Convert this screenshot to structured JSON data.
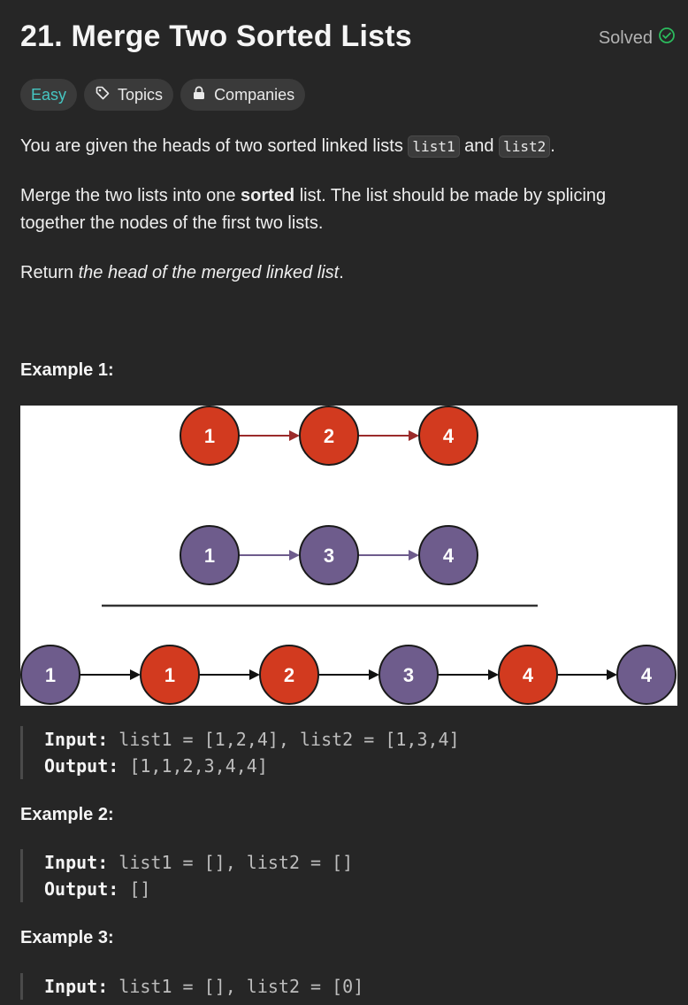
{
  "problem": {
    "title": "21. Merge Two Sorted Lists",
    "status": "Solved",
    "tags": {
      "difficulty": "Easy",
      "topics": "Topics",
      "companies": "Companies"
    }
  },
  "description": {
    "p1_pre": "You are given the heads of two sorted linked lists ",
    "p1_code1": "list1",
    "p1_mid": " and ",
    "p1_code2": "list2",
    "p1_end": ".",
    "p2_pre": "Merge the two lists into one ",
    "p2_bold": "sorted",
    "p2_post": " list. The list should be made by splicing together the nodes of the first two lists.",
    "p3_pre": "Return ",
    "p3_italic": "the head of the merged linked list",
    "p3_end": "."
  },
  "figure": {
    "list1": [
      "1",
      "2",
      "4"
    ],
    "list2": [
      "1",
      "3",
      "4"
    ],
    "merged": [
      {
        "v": "1",
        "c": "purple"
      },
      {
        "v": "1",
        "c": "red"
      },
      {
        "v": "2",
        "c": "red"
      },
      {
        "v": "3",
        "c": "purple"
      },
      {
        "v": "4",
        "c": "red"
      },
      {
        "v": "4",
        "c": "purple"
      }
    ],
    "colors": {
      "red": "#d23a1f",
      "purple": "#6e5c8c",
      "red_arrow": "#9b2b2b",
      "purple_arrow": "#6e5c8c",
      "black": "#111111"
    }
  },
  "examples": [
    {
      "heading": "Example 1:",
      "input_label": "Input:",
      "input": "list1 = [1,2,4], list2 = [1,3,4]",
      "output_label": "Output:",
      "output": "[1,1,2,3,4,4]"
    },
    {
      "heading": "Example 2:",
      "input_label": "Input:",
      "input": "list1 = [], list2 = []",
      "output_label": "Output:",
      "output": "[]"
    },
    {
      "heading": "Example 3:",
      "input_label": "Input:",
      "input": "list1 = [], list2 = [0]"
    }
  ]
}
